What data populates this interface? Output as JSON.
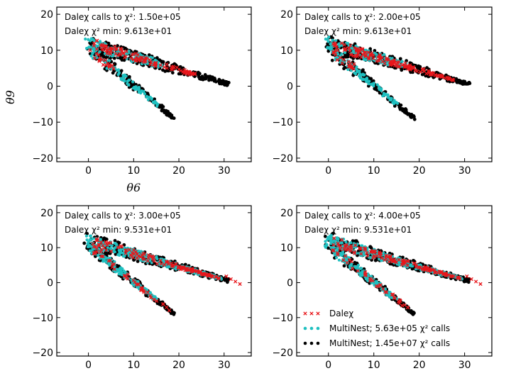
{
  "chart_data": [
    {
      "type": "scatter",
      "panel": "top-left",
      "annotation_line1": "Daleχ calls to χ²: 1.50e+05",
      "annotation_line2": "Daleχ χ² min: 9.613e+01",
      "xlabel": "θ6",
      "ylabel": "θ9",
      "xlim": [
        -7,
        36
      ],
      "ylim": [
        -21,
        22
      ],
      "xticks": [
        "0",
        "10",
        "20",
        "30"
      ],
      "yticks": [
        "20",
        "10",
        "0",
        "−10",
        "−20"
      ],
      "show_legend": false,
      "dale_extent": 24
    },
    {
      "type": "scatter",
      "panel": "top-right",
      "annotation_line1": "Daleχ calls to χ²: 2.00e+05",
      "annotation_line2": "Daleχ χ² min: 9.613e+01",
      "xlabel": "",
      "ylabel": "",
      "xlim": [
        -7,
        36
      ],
      "ylim": [
        -21,
        22
      ],
      "xticks": [
        "0",
        "10",
        "20",
        "30"
      ],
      "yticks": [
        "20",
        "10",
        "0",
        "−10",
        "−20"
      ],
      "show_legend": false,
      "dale_extent": 28
    },
    {
      "type": "scatter",
      "panel": "bottom-left",
      "annotation_line1": "Daleχ calls to χ²: 3.00e+05",
      "annotation_line2": "Daleχ χ² min: 9.531e+01",
      "xlabel": "",
      "ylabel": "",
      "xlim": [
        -7,
        36
      ],
      "ylim": [
        -21,
        22
      ],
      "xticks": [
        "0",
        "10",
        "20",
        "30"
      ],
      "yticks": [
        "20",
        "10",
        "0",
        "−10",
        "−20"
      ],
      "show_legend": false,
      "dale_extent": 34
    },
    {
      "type": "scatter",
      "panel": "bottom-right",
      "annotation_line1": "Daleχ calls to χ²: 4.00e+05",
      "annotation_line2": "Daleχ χ² min: 9.531e+01",
      "xlabel": "",
      "ylabel": "",
      "xlim": [
        -7,
        36
      ],
      "ylim": [
        -21,
        22
      ],
      "xticks": [
        "0",
        "10",
        "20",
        "30"
      ],
      "yticks": [
        "20",
        "10",
        "0",
        "−10",
        "−20"
      ],
      "show_legend": true,
      "dale_extent": 34
    }
  ],
  "legend": {
    "entries": [
      {
        "name": "Daleχ",
        "marker": "x",
        "color": "#e8161b"
      },
      {
        "name": "MultiNest; 5.63e+05 χ² calls",
        "marker": "o",
        "color": "#1fc0c0"
      },
      {
        "name": "MultiNest; 1.45e+07 χ² calls",
        "marker": "o",
        "color": "#000000"
      }
    ]
  },
  "series_shape": {
    "upper_arm": {
      "x": [
        -0.5,
        31
      ],
      "y": [
        12,
        0.5
      ]
    },
    "lower_arm": {
      "x": [
        0.5,
        19
      ],
      "y": [
        10,
        -9
      ]
    },
    "outlier": {
      "x": 31,
      "y": 1
    }
  },
  "colors": {
    "dalechi": "#e8161b",
    "multinest_low": "#1fc0c0",
    "multinest_high": "#000000"
  }
}
